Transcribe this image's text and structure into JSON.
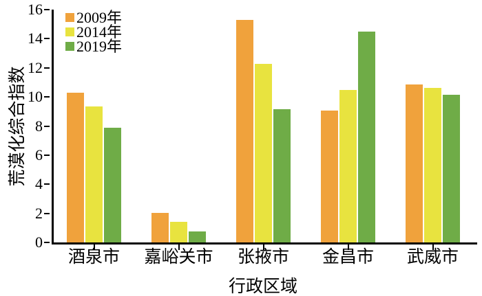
{
  "chart_data": {
    "type": "bar",
    "title": "",
    "xlabel": "行政区域",
    "ylabel": "荒漠化综合指数",
    "categories": [
      "酒泉市",
      "嘉峪关市",
      "张掖市",
      "金昌市",
      "武威市"
    ],
    "series": [
      {
        "name": "2009年",
        "color": "#F0A23C",
        "values": [
          10.3,
          2.05,
          15.3,
          9.05,
          10.85
        ]
      },
      {
        "name": "2014年",
        "color": "#E8E33F",
        "values": [
          9.35,
          1.4,
          12.25,
          10.5,
          10.6
        ]
      },
      {
        "name": "2019年",
        "color": "#6FAC47",
        "values": [
          7.9,
          0.75,
          9.15,
          14.5,
          10.15
        ]
      }
    ],
    "ylim": [
      0,
      16
    ],
    "yticks": [
      0,
      2,
      4,
      6,
      8,
      10,
      12,
      14,
      16
    ],
    "grid": false,
    "legend_position": "upper-left-inside",
    "axis_color": "#000000",
    "background_color": "#ffffff"
  }
}
